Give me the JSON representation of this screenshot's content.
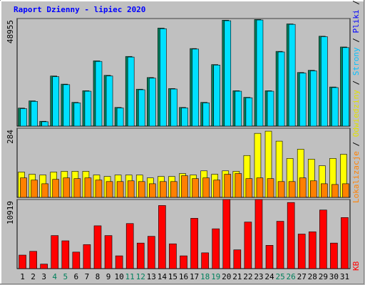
{
  "chart_data": {
    "type": "bar",
    "title": "Raport Dzienny -  lipiec 2020",
    "title_color": "#0000ff",
    "legend_separator": " / ",
    "legends": [
      [
        {
          "text": "Lokalizacje",
          "color": "#ff8000"
        },
        {
          "text": "Odwiedziny",
          "color": "#e0e000"
        },
        {
          "text": "Strony",
          "color": "#00c0ff"
        },
        {
          "text": "Pliki",
          "color": "#0000ff"
        },
        {
          "text": "Wywołania",
          "color": "#00805c"
        }
      ],
      [
        {
          "text": "KB",
          "color": "#ff0000"
        }
      ]
    ],
    "categories": [
      "1",
      "2",
      "3",
      "4",
      "5",
      "6",
      "7",
      "8",
      "9",
      "10",
      "11",
      "12",
      "13",
      "14",
      "15",
      "16",
      "17",
      "18",
      "19",
      "20",
      "21",
      "22",
      "23",
      "24",
      "25",
      "26",
      "27",
      "28",
      "29",
      "30",
      "31"
    ],
    "category_colors": [
      "#000000",
      "#000000",
      "#000000",
      "#00805c",
      "#00805c",
      "#000000",
      "#000000",
      "#000000",
      "#000000",
      "#000000",
      "#00805c",
      "#00805c",
      "#000000",
      "#000000",
      "#000000",
      "#000000",
      "#000000",
      "#00805c",
      "#00805c",
      "#000000",
      "#000000",
      "#000000",
      "#000000",
      "#000000",
      "#00805c",
      "#00805c",
      "#000000",
      "#000000",
      "#000000",
      "#000000",
      "#000000"
    ],
    "panels": [
      {
        "ylim": [
          0,
          48955
        ],
        "yticks": [
          48955
        ],
        "series": [
          {
            "color": "#00805c",
            "values": [
              8200,
              11500,
              2200,
              22800,
              19100,
              10800,
              16100,
              29700,
              23100,
              8500,
              31700,
              16800,
              22100,
              44600,
              17100,
              8500,
              35300,
              10800,
              28000,
              48200,
              16100,
              13100,
              48500,
              16100,
              34000,
              46500,
              24400,
              25400,
              40900,
              17800,
              36000
            ]
          },
          {
            "color": "#00e0ff",
            "values": [
              7939,
              11246,
              1985,
              22493,
              18854,
              10585,
              15877,
              29439,
              22823,
              8269,
              31423,
              16539,
              21831,
              44324,
              16869,
              8269,
              35062,
              10585,
              27785,
              47963,
              15877,
              12900,
              48293,
              15877,
              33739,
              46309,
              24146,
              25139,
              40685,
              17531,
              35724
            ]
          }
        ]
      },
      {
        "ylim": [
          0,
          284
        ],
        "yticks": [
          284
        ],
        "series": [
          {
            "color": "#ffff00",
            "values": [
              104,
              95,
              92,
              104,
              107,
              107,
              107,
              92,
              86,
              92,
              92,
              92,
              80,
              86,
              86,
              98,
              92,
              109,
              95,
              109,
              107,
              172,
              263,
              272,
              231,
              160,
              198,
              157,
              130,
              160,
              177
            ]
          },
          {
            "color": "#ff8000",
            "values": [
              80,
              71,
              56,
              74,
              80,
              77,
              80,
              71,
              65,
              65,
              68,
              65,
              56,
              65,
              65,
              89,
              77,
              80,
              71,
              95,
              98,
              77,
              80,
              77,
              65,
              65,
              80,
              68,
              56,
              53,
              56
            ]
          }
        ]
      },
      {
        "ylim": [
          0,
          10919
        ],
        "yticks": [
          10919
        ],
        "series": [
          {
            "color": "#ff0000",
            "values": [
              2137,
              2730,
              712,
              5223,
              4392,
              2611,
              3798,
              6765,
              5223,
              2018,
              7121,
              4036,
              5104,
              9970,
              3917,
              2018,
              7952,
              2493,
              6291,
              10919,
              2967,
              7359,
              10919,
              3680,
              7478,
              10445,
              5460,
              5816,
              9258,
              4036,
              8071
            ]
          }
        ]
      }
    ]
  }
}
